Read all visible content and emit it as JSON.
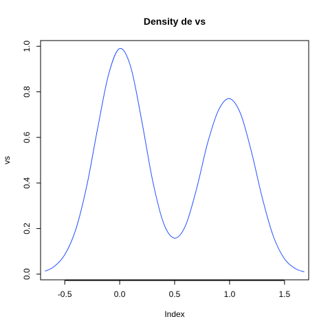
{
  "chart_data": {
    "type": "line",
    "title": "Density de  vs",
    "xlabel": "Index",
    "ylabel": "vs",
    "xlim": [
      -0.72,
      1.72
    ],
    "ylim": [
      -0.025,
      1.025
    ],
    "x_ticks": [
      -0.5,
      0.0,
      0.5,
      1.0,
      1.5
    ],
    "x_tick_labels": [
      "-0.5",
      "0.0",
      "0.5",
      "1.0",
      "1.5"
    ],
    "y_ticks": [
      0.0,
      0.2,
      0.4,
      0.6,
      0.8,
      1.0
    ],
    "y_tick_labels": [
      "0.0",
      "0.2",
      "0.4",
      "0.6",
      "0.8",
      "1.0"
    ],
    "grid": false,
    "legend": "none",
    "series": [
      {
        "color": "#1f4fff",
        "x": [
          -0.68,
          -0.6,
          -0.5,
          -0.4,
          -0.3,
          -0.2,
          -0.1,
          0.0,
          0.1,
          0.2,
          0.3,
          0.4,
          0.5,
          0.6,
          0.7,
          0.8,
          0.9,
          1.0,
          1.1,
          1.2,
          1.3,
          1.4,
          1.5,
          1.6,
          1.68
        ],
        "y": [
          0.013,
          0.032,
          0.085,
          0.195,
          0.386,
          0.641,
          0.878,
          0.99,
          0.91,
          0.675,
          0.41,
          0.223,
          0.158,
          0.214,
          0.375,
          0.575,
          0.72,
          0.77,
          0.704,
          0.535,
          0.33,
          0.164,
          0.067,
          0.024,
          0.01
        ]
      }
    ]
  }
}
